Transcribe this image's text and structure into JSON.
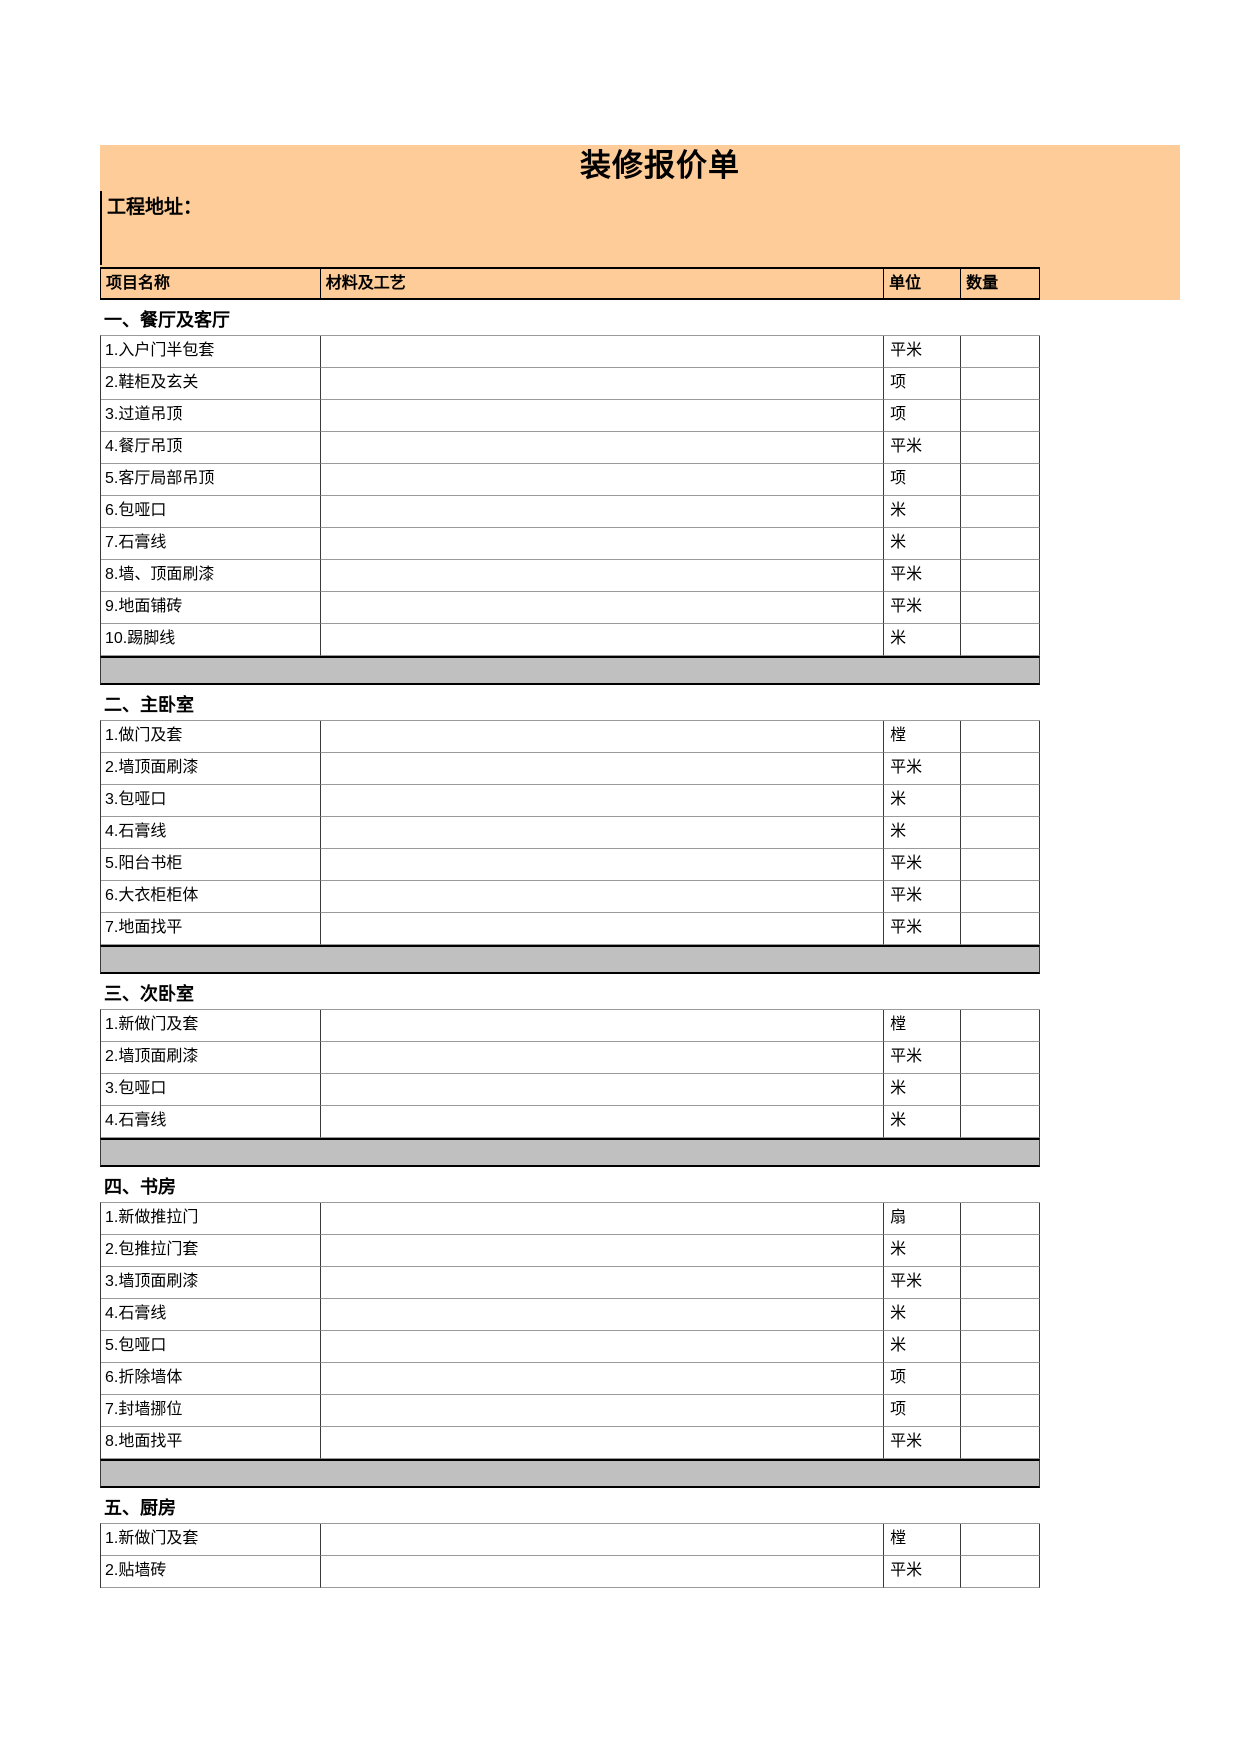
{
  "title": "装修报价单",
  "address": {
    "label": "工程地址：",
    "value": ""
  },
  "table": {
    "headers": [
      "项目名称",
      "材料及工艺",
      "单位",
      "数量"
    ]
  },
  "sections": [
    {
      "heading": "一、餐厅及客厅",
      "separator": true,
      "rows": [
        {
          "name": "1.入户门半包套",
          "material": "",
          "unit": "平米",
          "qty": ""
        },
        {
          "name": "2.鞋柜及玄关",
          "material": "",
          "unit": "项",
          "qty": ""
        },
        {
          "name": "3.过道吊顶",
          "material": "",
          "unit": "项",
          "qty": ""
        },
        {
          "name": "4.餐厅吊顶",
          "material": "",
          "unit": "平米",
          "qty": ""
        },
        {
          "name": "5.客厅局部吊顶",
          "material": "",
          "unit": "项",
          "qty": ""
        },
        {
          "name": "6.包哑口",
          "material": "",
          "unit": "米",
          "qty": ""
        },
        {
          "name": "7.石膏线",
          "material": "",
          "unit": "米",
          "qty": ""
        },
        {
          "name": "8.墙、顶面刷漆",
          "material": "",
          "unit": "平米",
          "qty": ""
        },
        {
          "name": "9.地面铺砖",
          "material": "",
          "unit": "平米",
          "qty": ""
        },
        {
          "name": "10.踢脚线",
          "material": "",
          "unit": "米",
          "qty": ""
        }
      ]
    },
    {
      "heading": "二、主卧室",
      "separator": true,
      "rows": [
        {
          "name": "1.做门及套",
          "material": "",
          "unit": "樘",
          "qty": ""
        },
        {
          "name": "2.墙顶面刷漆",
          "material": "",
          "unit": "平米",
          "qty": ""
        },
        {
          "name": "3.包哑口",
          "material": "",
          "unit": "米",
          "qty": ""
        },
        {
          "name": "4.石膏线",
          "material": "",
          "unit": "米",
          "qty": ""
        },
        {
          "name": "5.阳台书柜",
          "material": "",
          "unit": "平米",
          "qty": ""
        },
        {
          "name": "6.大衣柜柜体",
          "material": "",
          "unit": "平米",
          "qty": ""
        },
        {
          "name": "7.地面找平",
          "material": "",
          "unit": "平米",
          "qty": ""
        }
      ]
    },
    {
      "heading": "三、次卧室",
      "separator": true,
      "rows": [
        {
          "name": "1.新做门及套",
          "material": "",
          "unit": "樘",
          "qty": ""
        },
        {
          "name": "2.墙顶面刷漆",
          "material": "",
          "unit": "平米",
          "qty": ""
        },
        {
          "name": "3.包哑口",
          "material": "",
          "unit": "米",
          "qty": ""
        },
        {
          "name": "4.石膏线",
          "material": "",
          "unit": "米",
          "qty": ""
        }
      ]
    },
    {
      "heading": "四、书房",
      "separator": true,
      "rows": [
        {
          "name": "1.新做推拉门",
          "material": "",
          "unit": "扇",
          "qty": ""
        },
        {
          "name": "2.包推拉门套",
          "material": "",
          "unit": "米",
          "qty": ""
        },
        {
          "name": "3.墙顶面刷漆",
          "material": "",
          "unit": "平米",
          "qty": ""
        },
        {
          "name": "4.石膏线",
          "material": "",
          "unit": "米",
          "qty": ""
        },
        {
          "name": "5.包哑口",
          "material": "",
          "unit": "米",
          "qty": ""
        },
        {
          "name": "6.折除墙体",
          "material": "",
          "unit": "项",
          "qty": ""
        },
        {
          "name": "7.封墙挪位",
          "material": "",
          "unit": "项",
          "qty": ""
        },
        {
          "name": "8.地面找平",
          "material": "",
          "unit": "平米",
          "qty": ""
        }
      ]
    },
    {
      "heading": "五、厨房",
      "separator": false,
      "rows": [
        {
          "name": "1.新做门及套",
          "material": "",
          "unit": "樘",
          "qty": ""
        },
        {
          "name": "2.贴墙砖",
          "material": "",
          "unit": "平米",
          "qty": ""
        }
      ]
    }
  ],
  "colors": {
    "banner": "#FECC98",
    "separator": "#C0C0C0",
    "border_dark": "#000000",
    "border_light": "#9A9A9A"
  }
}
